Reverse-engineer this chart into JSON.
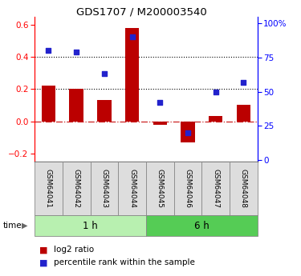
{
  "title": "GDS1707 / M200003540",
  "samples": [
    "GSM64041",
    "GSM64042",
    "GSM64043",
    "GSM64044",
    "GSM64045",
    "GSM64046",
    "GSM64047",
    "GSM64048"
  ],
  "log2_ratio": [
    0.22,
    0.2,
    0.13,
    0.58,
    -0.02,
    -0.13,
    0.03,
    0.1
  ],
  "percentile_rank": [
    80,
    79,
    63,
    90,
    42,
    20,
    50,
    57
  ],
  "groups": [
    {
      "label": "1 h",
      "start": 0,
      "end": 4,
      "color": "#b8f0b0"
    },
    {
      "label": "6 h",
      "start": 4,
      "end": 8,
      "color": "#55cc55"
    }
  ],
  "bar_color": "#bb0000",
  "dot_color": "#2222cc",
  "ylim_left": [
    -0.25,
    0.65
  ],
  "ylim_right": [
    -1.19,
    105
  ],
  "yticks_left": [
    -0.2,
    0.0,
    0.2,
    0.4,
    0.6
  ],
  "yticks_right": [
    0,
    25,
    50,
    75,
    100
  ],
  "ytick_labels_right": [
    "0",
    "25",
    "50",
    "75",
    "100%"
  ],
  "legend_log2": "log2 ratio",
  "legend_pct": "percentile rank within the sample",
  "time_label": "time",
  "bar_width": 0.5
}
